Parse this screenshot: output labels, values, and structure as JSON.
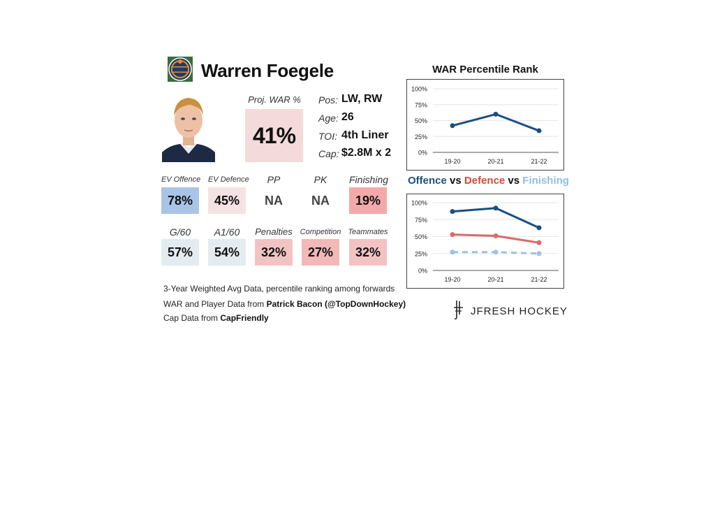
{
  "player": {
    "name": "Warren Foegele",
    "team_logo_icon": "oilers-logo-icon",
    "photo_icon": "player-headshot-icon"
  },
  "proj_war": {
    "label": "Proj. WAR %",
    "value": "41%"
  },
  "info": [
    {
      "label": "Pos:",
      "value": "LW, RW"
    },
    {
      "label": "Age:",
      "value": "26"
    },
    {
      "label": "TOI:",
      "value": "4th Liner"
    },
    {
      "label": "Cap:",
      "value": "$2.8M x 2"
    }
  ],
  "stats_row1": [
    {
      "label": "EV Offence",
      "value": "78%",
      "color": "#a9c4e6"
    },
    {
      "label": "EV Defence",
      "value": "45%",
      "color": "#f5e3e3"
    },
    {
      "label": "PP",
      "value": "NA",
      "color": "#ffffff"
    },
    {
      "label": "PK",
      "value": "NA",
      "color": "#ffffff"
    },
    {
      "label": "Finishing",
      "value": "19%",
      "color": "#f3a9a9"
    }
  ],
  "stats_row2": [
    {
      "label": "G/60",
      "value": "57%",
      "color": "#e4ebf1"
    },
    {
      "label": "A1/60",
      "value": "54%",
      "color": "#e4ebf1"
    },
    {
      "label": "Penalties",
      "value": "32%",
      "color": "#f3c3c3"
    },
    {
      "label": "Competition",
      "value": "27%",
      "color": "#f3b8b8"
    },
    {
      "label": "Teammates",
      "value": "32%",
      "color": "#f3c3c3"
    }
  ],
  "notes": {
    "line1": "3-Year Weighted Avg Data, percentile ranking among forwards",
    "line2_prefix": "WAR and Player Data from ",
    "line2_bold": "Patrick Bacon (@TopDownHockey)",
    "line3_prefix": "Cap Data from ",
    "line3_bold": "CapFriendly"
  },
  "brand": {
    "text": "JFRESH HOCKEY",
    "icon": "jfresh-logo-icon"
  },
  "colors": {
    "offence": "#1a5083",
    "defence": "#d96b6b",
    "finishing": "#9cc3e2"
  },
  "chart_data": [
    {
      "type": "line",
      "title": "WAR Percentile Rank",
      "categories": [
        "19-20",
        "20-21",
        "21-22"
      ],
      "ylim": [
        0,
        100
      ],
      "yticks": [
        "0%",
        "25%",
        "50%",
        "75%",
        "100%"
      ],
      "grid": true,
      "series": [
        {
          "values": [
            42,
            60,
            34
          ],
          "color": "#1a5083"
        }
      ]
    },
    {
      "type": "line",
      "title": {
        "offence": "Offence",
        "vs1": " vs ",
        "defence": "Defence",
        "vs2": " vs ",
        "finishing": "Finishing"
      },
      "categories": [
        "19-20",
        "20-21",
        "21-22"
      ],
      "ylim": [
        0,
        100
      ],
      "yticks": [
        "0%",
        "25%",
        "50%",
        "75%",
        "100%"
      ],
      "grid": true,
      "series": [
        {
          "name": "Offence",
          "values": [
            87,
            92,
            63
          ],
          "color": "#1a5083"
        },
        {
          "name": "Defence",
          "values": [
            53,
            51,
            41
          ],
          "color": "#d96b6b"
        },
        {
          "name": "Finishing",
          "values": [
            27,
            27,
            25
          ],
          "color": "#9cc3e2",
          "dashed": true
        }
      ]
    }
  ]
}
